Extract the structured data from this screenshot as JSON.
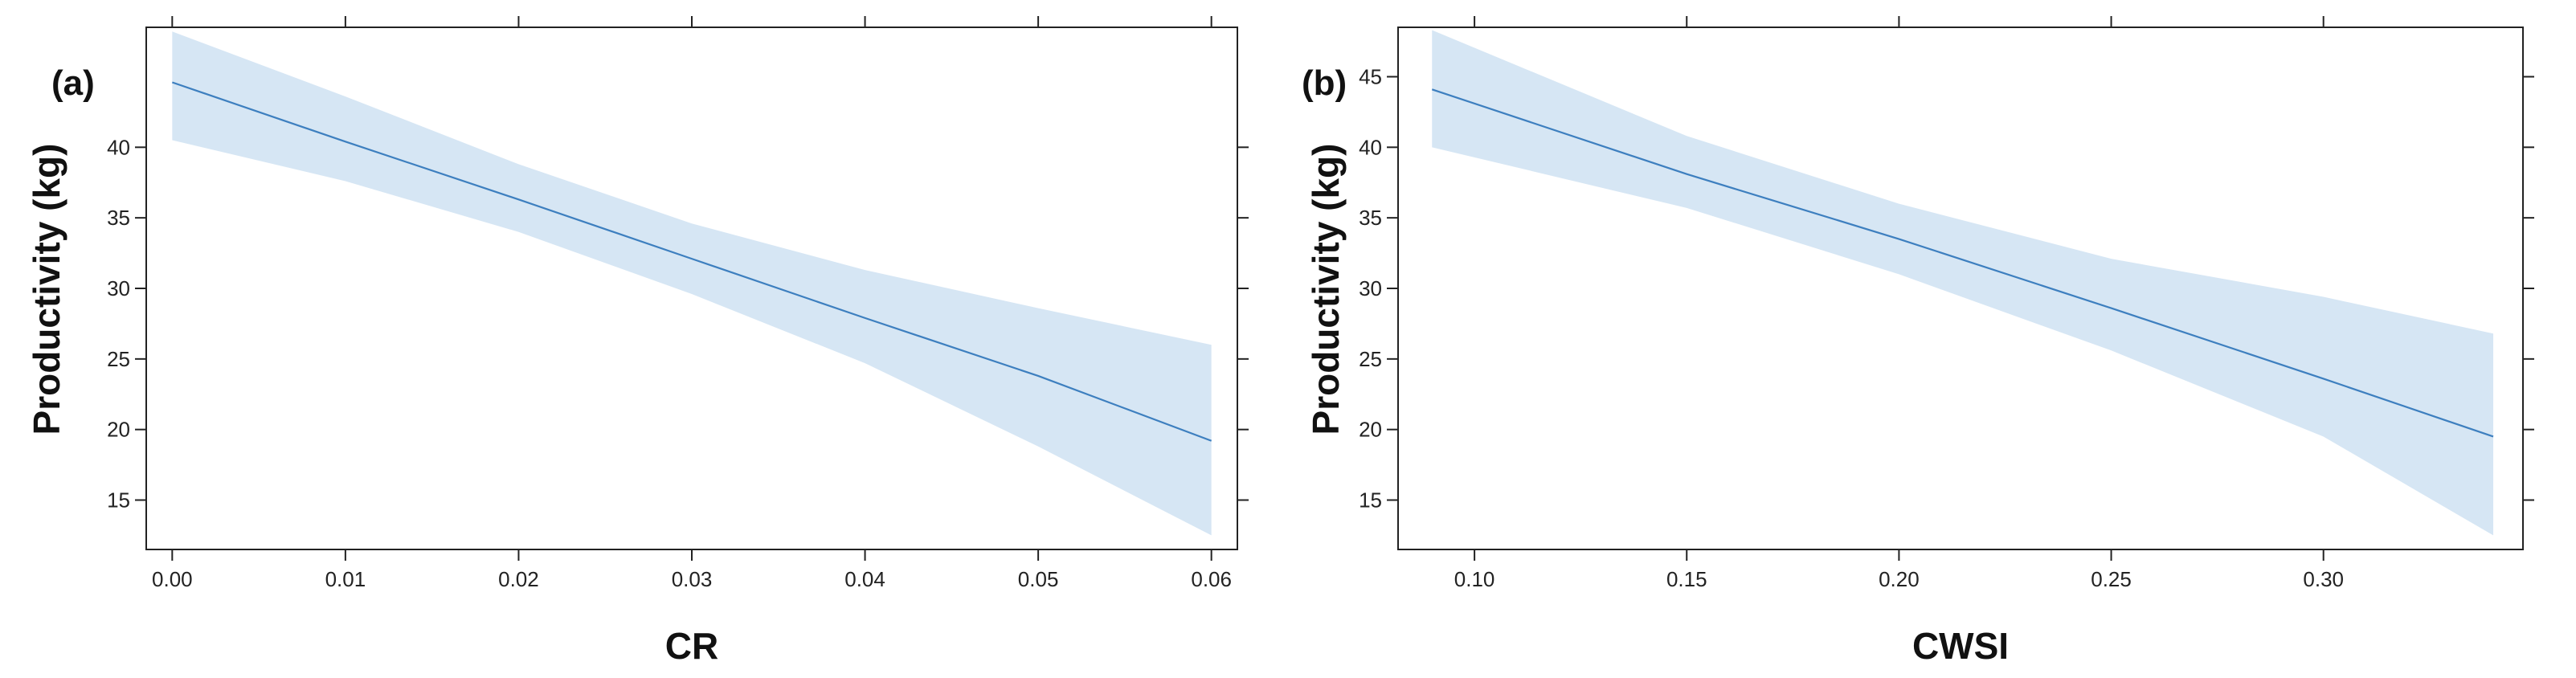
{
  "chart_data": [
    {
      "type": "line",
      "panel_label": "(a)",
      "xlabel": "CR",
      "ylabel": "Productivity (kg)",
      "xlim": [
        -0.0015,
        0.0615
      ],
      "ylim": [
        11.5,
        48.5
      ],
      "x_ticks": [
        0.0,
        0.01,
        0.02,
        0.03,
        0.04,
        0.05,
        0.06
      ],
      "x_tick_labels": [
        "0.00",
        "0.01",
        "0.02",
        "0.03",
        "0.04",
        "0.05",
        "0.06"
      ],
      "y_ticks": [
        15,
        20,
        25,
        30,
        35,
        40
      ],
      "y_tick_labels": [
        "15",
        "20",
        "25",
        "30",
        "35",
        "40"
      ],
      "grid": false,
      "series": [
        {
          "x": [
            0.0,
            0.01,
            0.02,
            0.03,
            0.04,
            0.05,
            0.06
          ],
          "y": [
            44.6,
            40.4,
            36.3,
            32.1,
            27.9,
            23.8,
            19.2
          ],
          "lower": [
            40.5,
            37.6,
            34.0,
            29.6,
            24.7,
            18.8,
            12.5
          ],
          "upper": [
            48.2,
            43.6,
            38.8,
            34.6,
            31.3,
            28.6,
            26.0
          ]
        }
      ],
      "colors": {
        "line": "#3d7fbf",
        "band": "#d6e6f4"
      }
    },
    {
      "type": "line",
      "panel_label": "(b)",
      "xlabel": "CWSI",
      "ylabel": "Productivity (kg)",
      "xlim": [
        0.082,
        0.347
      ],
      "ylim": [
        11.5,
        48.5
      ],
      "x_ticks": [
        0.1,
        0.15,
        0.2,
        0.25,
        0.3
      ],
      "x_tick_labels": [
        "0.10",
        "0.15",
        "0.20",
        "0.25",
        "0.30"
      ],
      "y_ticks": [
        15,
        20,
        25,
        30,
        35,
        40,
        45
      ],
      "y_tick_labels": [
        "15",
        "20",
        "25",
        "30",
        "35",
        "40",
        "45"
      ],
      "grid": false,
      "series": [
        {
          "x": [
            0.09,
            0.15,
            0.2,
            0.25,
            0.3,
            0.34
          ],
          "y": [
            44.1,
            38.1,
            33.5,
            28.6,
            23.6,
            19.5
          ],
          "lower": [
            40.0,
            35.7,
            31.0,
            25.6,
            19.5,
            12.5
          ],
          "upper": [
            48.3,
            40.8,
            36.0,
            32.1,
            29.4,
            26.8
          ]
        }
      ],
      "colors": {
        "line": "#3d7fbf",
        "band": "#d6e6f4"
      }
    }
  ]
}
